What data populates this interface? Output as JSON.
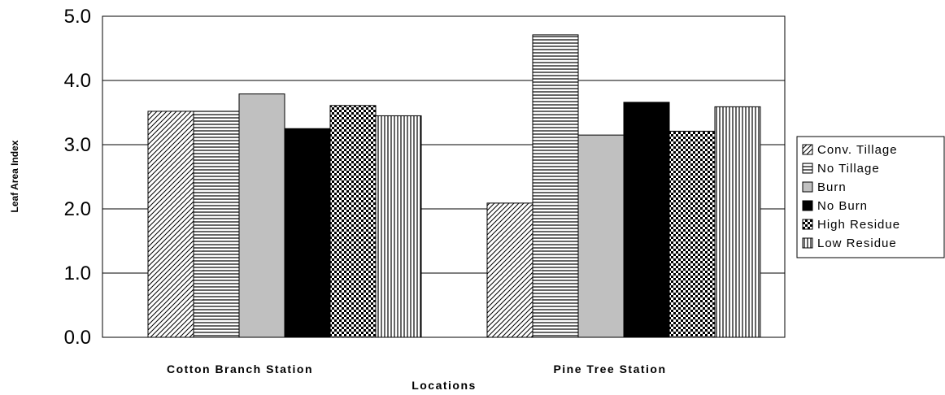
{
  "chart_data": {
    "type": "bar",
    "xlabel": "Locations",
    "ylabel": "Leaf Area Index",
    "ylim": [
      0,
      5
    ],
    "yticks": [
      "0.0",
      "1.0",
      "2.0",
      "3.0",
      "4.0",
      "5.0"
    ],
    "grid": true,
    "legend_position": "right",
    "categories": [
      "Cotton Branch Station",
      "Pine Tree Station"
    ],
    "series": [
      {
        "name": "Conv. Tillage",
        "pattern": "diagonal-hatch",
        "values": [
          3.52,
          2.09
        ]
      },
      {
        "name": "No Tillage",
        "pattern": "horizontal-lines",
        "values": [
          3.52,
          4.71
        ]
      },
      {
        "name": "Burn",
        "pattern": "solid-light-gray",
        "values": [
          3.79,
          3.15
        ]
      },
      {
        "name": "No Burn",
        "pattern": "solid-black",
        "values": [
          3.25,
          3.66
        ]
      },
      {
        "name": "High Residue",
        "pattern": "checker-dots",
        "values": [
          3.61,
          3.21
        ]
      },
      {
        "name": "Low Residue",
        "pattern": "vertical-lines",
        "values": [
          3.45,
          3.59
        ]
      }
    ],
    "colors": {
      "burn": "#c0c0c0",
      "no_burn": "#000000",
      "grid": "#000000"
    }
  }
}
